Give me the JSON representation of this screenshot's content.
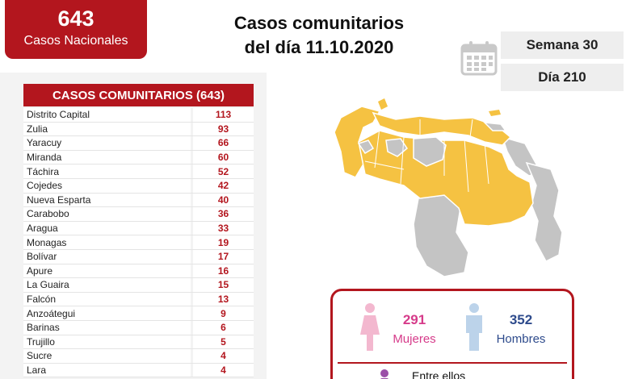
{
  "summary": {
    "total": "643",
    "total_label": "Casos Nacionales"
  },
  "headline": {
    "line1": "Casos comunitarios",
    "line2": "del día 11.10.2020"
  },
  "period": {
    "week": "Semana 30",
    "day": "Día 210"
  },
  "table": {
    "title": "CASOS COMUNITARIOS (643)",
    "rows": [
      {
        "name": "Distrito Capital",
        "value": "113"
      },
      {
        "name": "Zulia",
        "value": "93"
      },
      {
        "name": "Yaracuy",
        "value": "66"
      },
      {
        "name": "Miranda",
        "value": "60"
      },
      {
        "name": "Táchira",
        "value": "52"
      },
      {
        "name": "Cojedes",
        "value": "42"
      },
      {
        "name": "Nueva Esparta",
        "value": "40"
      },
      {
        "name": "Carabobo",
        "value": "36"
      },
      {
        "name": "Aragua",
        "value": "33"
      },
      {
        "name": "Monagas",
        "value": "19"
      },
      {
        "name": "Bolívar",
        "value": "17"
      },
      {
        "name": "Apure",
        "value": "16"
      },
      {
        "name": "La Guaira",
        "value": "15"
      },
      {
        "name": "Falcón",
        "value": "13"
      },
      {
        "name": "Anzoátegui",
        "value": "9"
      },
      {
        "name": "Barinas",
        "value": "6"
      },
      {
        "name": "Trujillo",
        "value": "5"
      },
      {
        "name": "Sucre",
        "value": "4"
      },
      {
        "name": "Lara",
        "value": "4"
      }
    ]
  },
  "gender": {
    "female_count": "291",
    "female_label": "Mujeres",
    "male_count": "352",
    "male_label": "Hombres",
    "between_label": "Entre ellos"
  },
  "colors": {
    "brand_red": "#b3161e",
    "map_affected": "#f5c242",
    "map_unaffected": "#c4c4c4",
    "female": "#d63b8a",
    "male": "#2e4b8c"
  },
  "icons": {
    "calendar": "calendar-icon",
    "female": "female-icon",
    "male": "male-icon",
    "child": "child-icon"
  }
}
